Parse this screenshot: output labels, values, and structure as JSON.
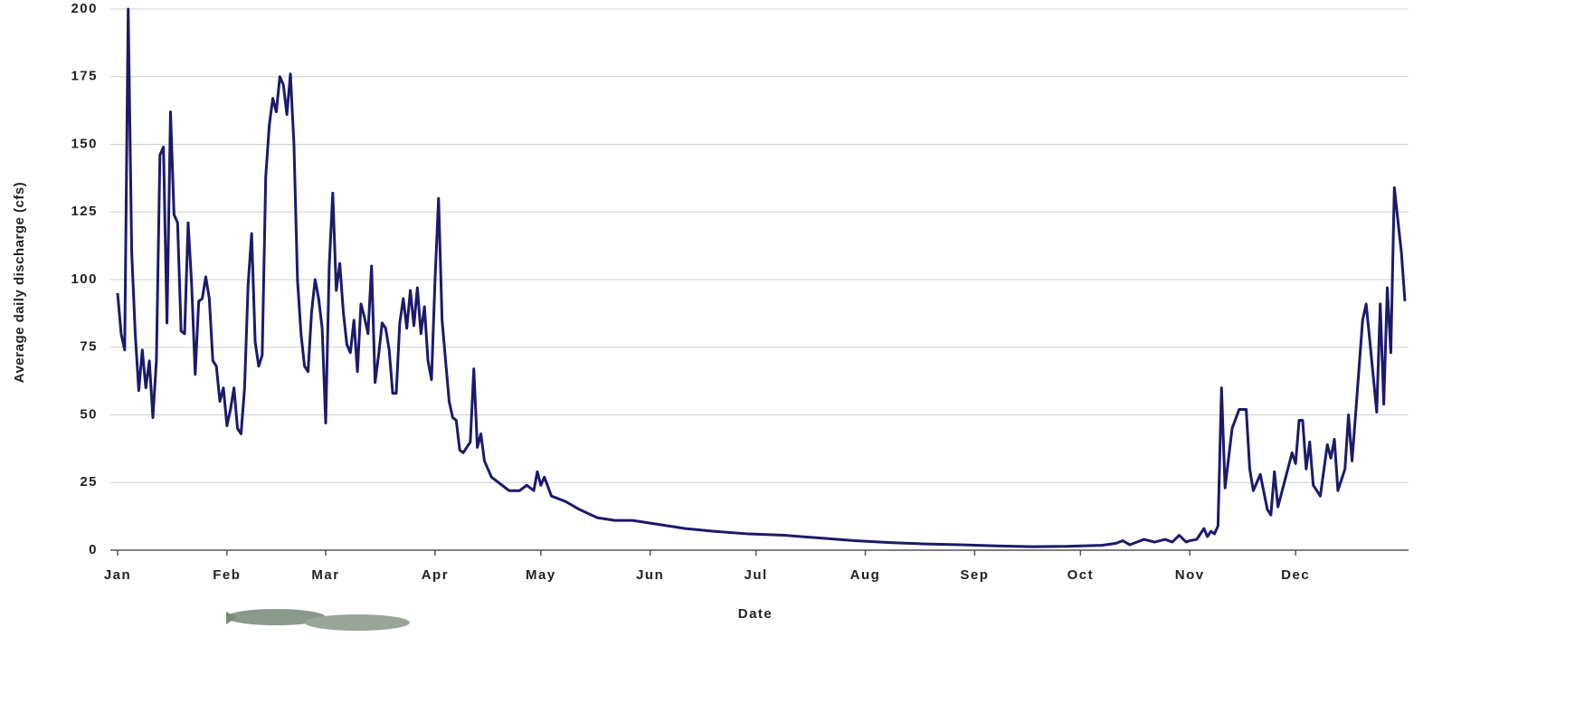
{
  "chart_data": {
    "type": "line",
    "y_label": "Average daily discharge (cfs)",
    "x_label": "Date",
    "color": "#1c1a6b",
    "grid": true,
    "xlim": [
      1,
      366
    ],
    "xticks": [
      {
        "value": 1,
        "label": "Jan"
      },
      {
        "value": 32,
        "label": "Feb"
      },
      {
        "value": 60,
        "label": "Mar"
      },
      {
        "value": 91,
        "label": "Apr"
      },
      {
        "value": 121,
        "label": "May"
      },
      {
        "value": 152,
        "label": "Jun"
      },
      {
        "value": 182,
        "label": "Jul"
      },
      {
        "value": 213,
        "label": "Aug"
      },
      {
        "value": 244,
        "label": "Sep"
      },
      {
        "value": 274,
        "label": "Oct"
      },
      {
        "value": 305,
        "label": "Nov"
      },
      {
        "value": 335,
        "label": "Dec"
      }
    ],
    "ylim": [
      0,
      200
    ],
    "yticks": [
      0,
      25,
      50,
      75,
      100,
      125,
      150,
      175,
      200
    ],
    "x": [
      1,
      2,
      3,
      4,
      5,
      6,
      7,
      8,
      9,
      10,
      11,
      12,
      13,
      14,
      15,
      16,
      17,
      18,
      19,
      20,
      21,
      22,
      23,
      24,
      25,
      26,
      27,
      28,
      29,
      30,
      31,
      32,
      33,
      34,
      35,
      36,
      37,
      38,
      39,
      40,
      41,
      42,
      43,
      44,
      45,
      46,
      47,
      48,
      49,
      50,
      51,
      52,
      53,
      54,
      55,
      56,
      57,
      58,
      59,
      60,
      61,
      62,
      63,
      64,
      65,
      66,
      67,
      68,
      69,
      70,
      71,
      72,
      73,
      74,
      75,
      76,
      77,
      78,
      79,
      80,
      81,
      82,
      83,
      84,
      85,
      86,
      87,
      88,
      89,
      90,
      91,
      92,
      93,
      94,
      95,
      96,
      97,
      98,
      99,
      100,
      101,
      102,
      103,
      104,
      105,
      106,
      107,
      109,
      112,
      115,
      117,
      119,
      120,
      121,
      122,
      124,
      128,
      132,
      137,
      142,
      147,
      152,
      157,
      162,
      170,
      180,
      190,
      200,
      210,
      220,
      230,
      240,
      250,
      260,
      270,
      280,
      284,
      286,
      288,
      292,
      295,
      298,
      300,
      302,
      304,
      305,
      307,
      309,
      310,
      311,
      312,
      313,
      314,
      315,
      317,
      319,
      321,
      322,
      323,
      325,
      327,
      328,
      329,
      330,
      332,
      334,
      335,
      336,
      337,
      338,
      339,
      340,
      342,
      344,
      345,
      346,
      347,
      349,
      350,
      351,
      352,
      354,
      355,
      356,
      358,
      359,
      360,
      361,
      362,
      363,
      365,
      366
    ],
    "values": [
      95,
      80,
      74,
      200,
      110,
      80,
      59,
      74,
      60,
      70,
      49,
      70,
      146,
      149,
      84,
      162,
      124,
      121,
      81,
      80,
      121,
      98,
      65,
      92,
      93,
      101,
      93,
      70,
      68,
      55,
      60,
      46,
      52,
      60,
      45,
      43,
      60,
      98,
      117,
      77,
      68,
      72,
      138,
      157,
      167,
      162,
      175,
      172,
      161,
      176,
      150,
      100,
      80,
      68,
      66,
      88,
      100,
      93,
      82,
      47,
      105,
      132,
      96,
      106,
      88,
      76,
      73,
      85,
      66,
      91,
      86,
      80,
      105,
      62,
      72,
      84,
      82,
      74,
      58,
      58,
      84,
      93,
      82,
      96,
      83,
      97,
      80,
      90,
      70,
      63,
      100,
      130,
      85,
      70,
      55,
      49,
      48,
      37,
      36,
      38,
      40,
      67,
      38,
      43,
      33,
      30,
      27,
      25,
      22,
      22,
      24,
      22,
      29,
      24,
      27,
      20,
      18,
      15,
      12,
      11,
      11,
      10,
      9,
      8,
      7,
      6,
      5.5,
      4.5,
      3.5,
      2.8,
      2.3,
      2,
      1.6,
      1.3,
      1.4,
      1.8,
      2.5,
      3.5,
      2,
      4,
      3,
      4,
      3,
      5.5,
      3,
      3.5,
      4,
      8,
      5,
      7,
      6,
      9,
      60,
      23,
      45,
      52,
      52,
      30,
      22,
      28,
      15,
      13,
      29,
      16,
      26,
      36,
      32,
      48,
      48,
      30,
      40,
      24,
      20,
      39,
      34,
      41,
      22,
      30,
      50,
      33,
      50,
      85,
      91,
      78,
      51,
      91,
      54,
      97,
      73,
      134,
      110,
      92
    ]
  }
}
